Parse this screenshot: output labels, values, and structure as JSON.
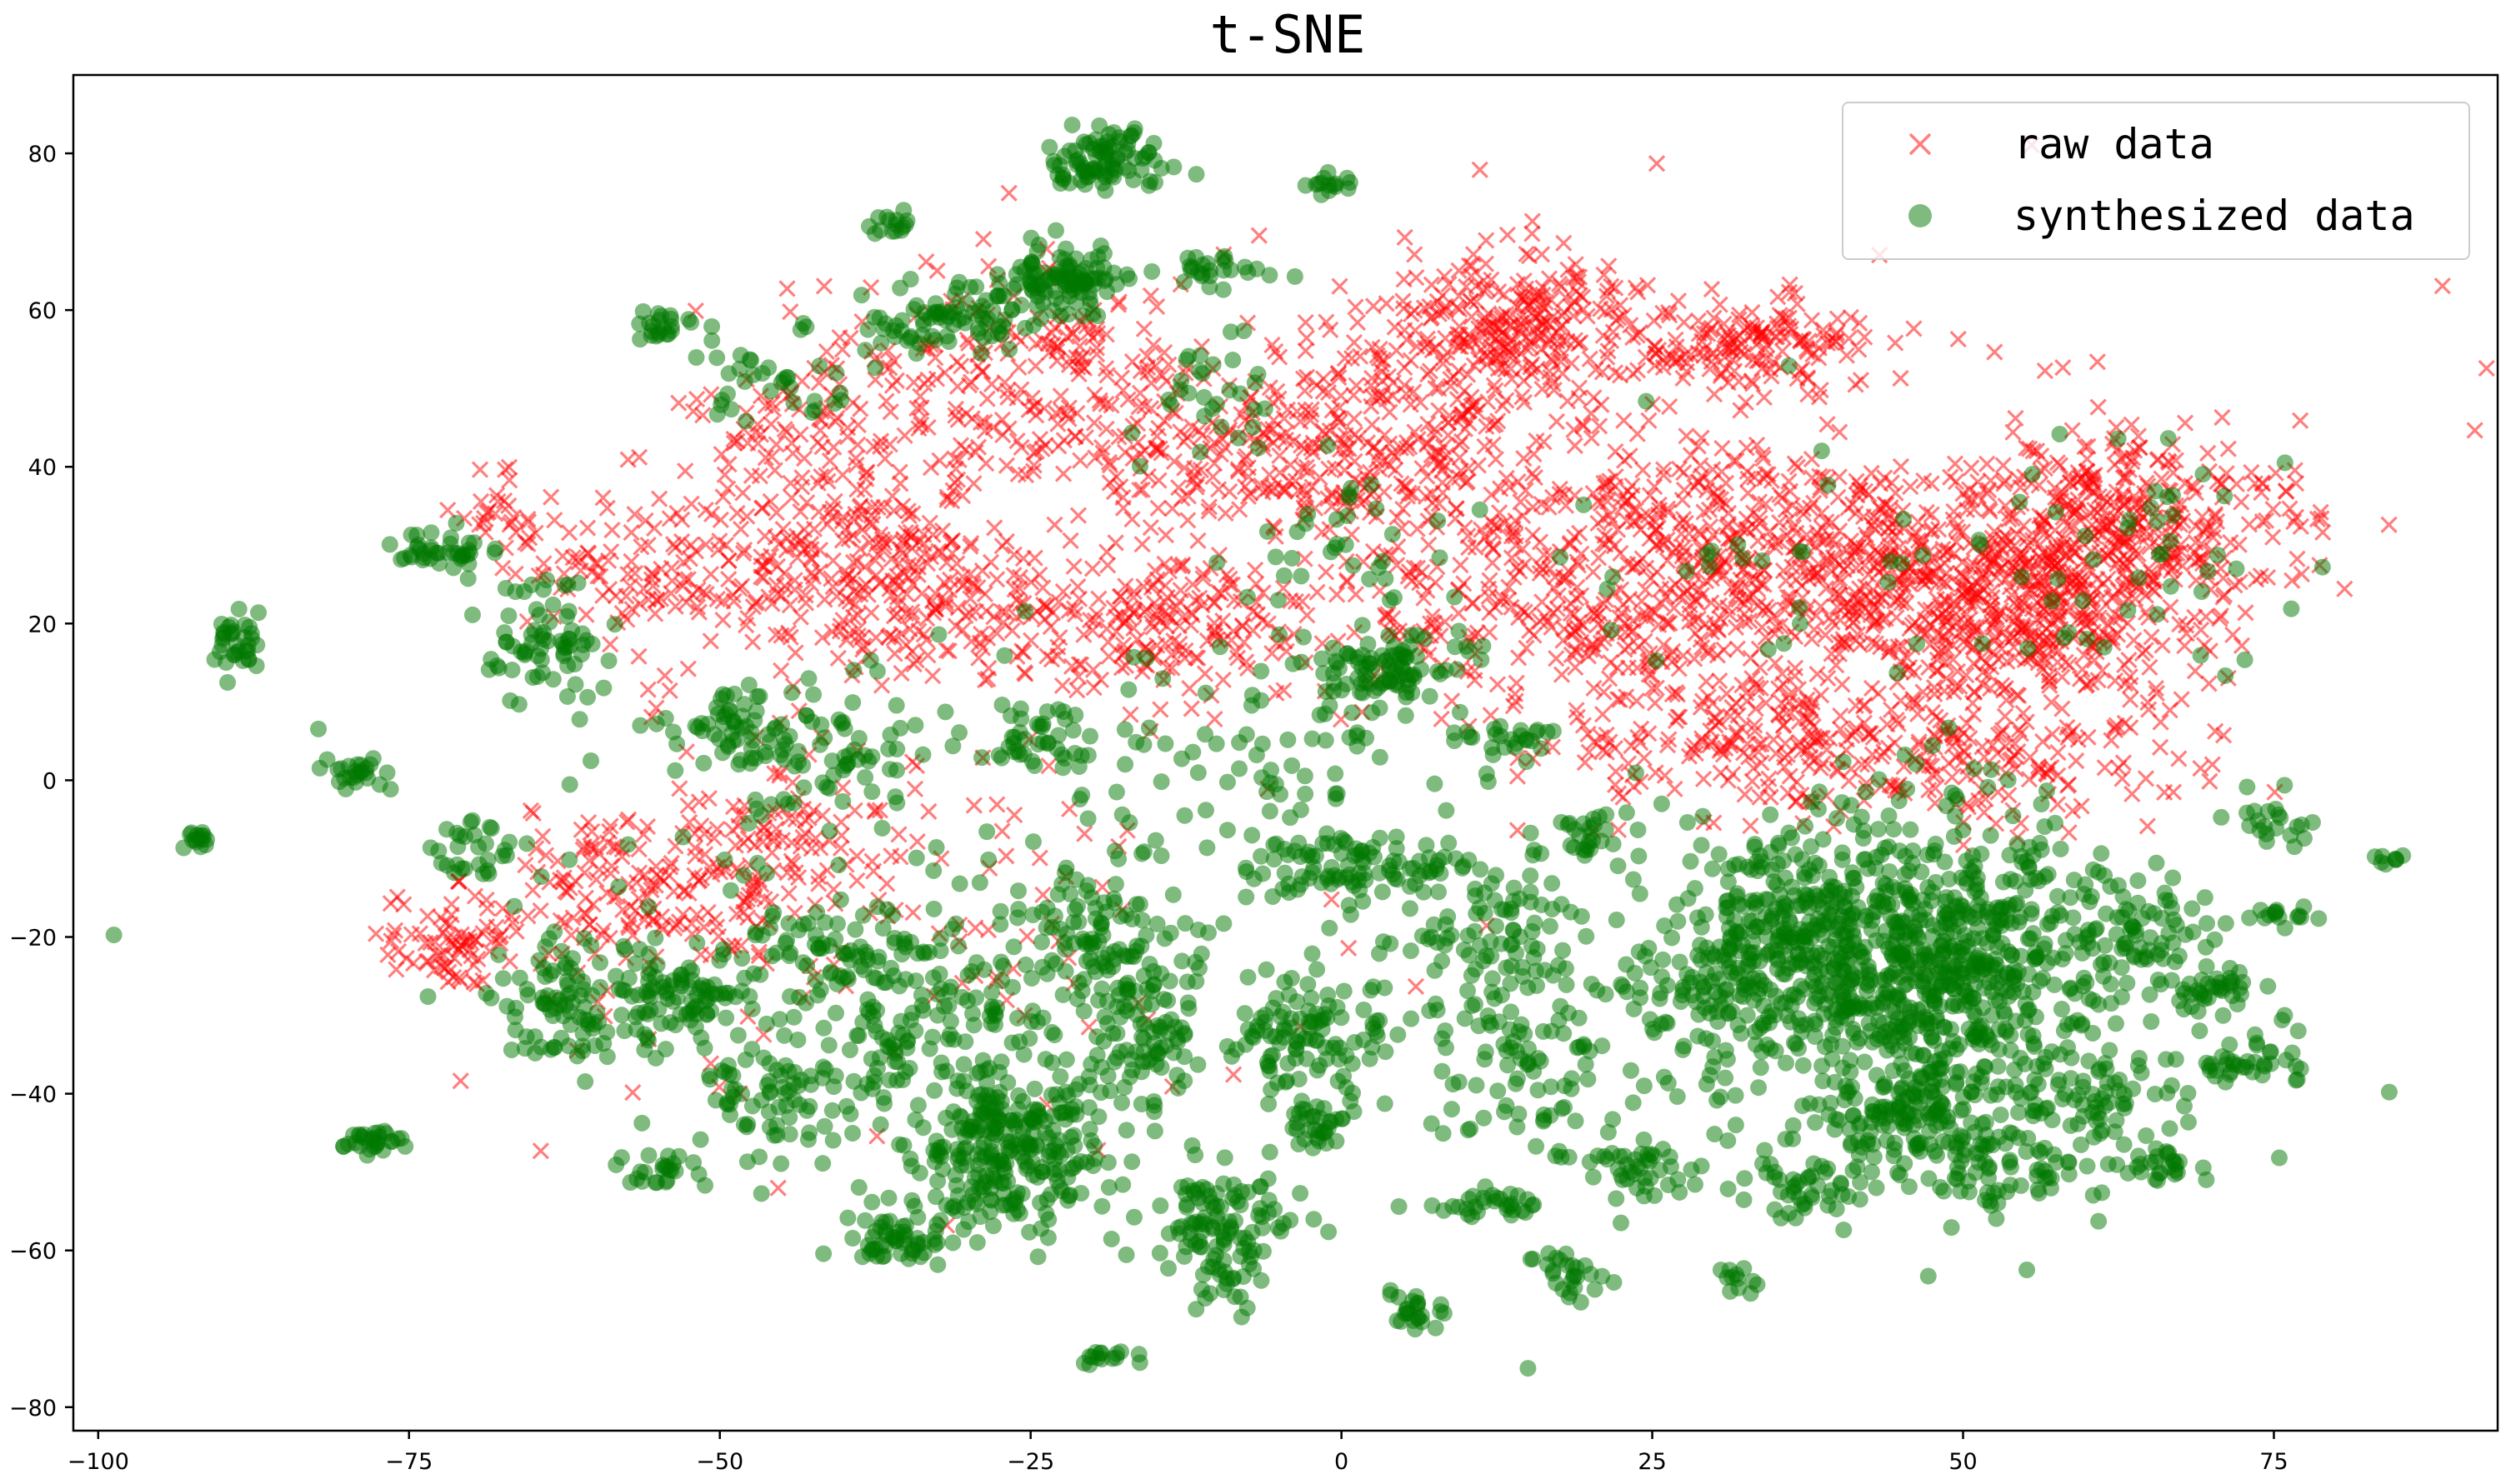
{
  "chart_data": {
    "type": "scatter",
    "title": "t-SNE",
    "xlabel": "",
    "ylabel": "",
    "xlim": [
      -102,
      93
    ],
    "ylim": [
      -83,
      90
    ],
    "xticks": [
      -100,
      -75,
      -50,
      -25,
      0,
      25,
      50,
      75
    ],
    "yticks": [
      -80,
      -60,
      -40,
      -20,
      0,
      20,
      40,
      60,
      80
    ],
    "grid": false,
    "legend_position": "top-right",
    "series": [
      {
        "name": "raw data",
        "marker": "x",
        "color": "#ff0000",
        "alpha": 0.5,
        "clusters": [
          {
            "cx": -71,
            "cy": -21,
            "sx": 3,
            "sy": 3,
            "n": 80
          },
          {
            "cx": -55,
            "cy": -14,
            "sx": 6,
            "sy": 5,
            "n": 150
          },
          {
            "cx": -45,
            "cy": -8,
            "sx": 5,
            "sy": 5,
            "n": 90
          },
          {
            "cx": -55,
            "cy": 27,
            "sx": 5,
            "sy": 5,
            "n": 110
          },
          {
            "cx": -68,
            "cy": 34,
            "sx": 2,
            "sy": 3,
            "n": 30
          },
          {
            "cx": -40,
            "cy": 28,
            "sx": 6,
            "sy": 7,
            "n": 230
          },
          {
            "cx": -42,
            "cy": 46,
            "sx": 6,
            "sy": 4,
            "n": 80
          },
          {
            "cx": -25,
            "cy": 52,
            "sx": 7,
            "sy": 7,
            "n": 200
          },
          {
            "cx": -30,
            "cy": 23,
            "sx": 6,
            "sy": 5,
            "n": 110
          },
          {
            "cx": -14,
            "cy": 20,
            "sx": 5,
            "sy": 5,
            "n": 160
          },
          {
            "cx": -8,
            "cy": 42,
            "sx": 7,
            "sy": 6,
            "n": 180
          },
          {
            "cx": 4,
            "cy": 45,
            "sx": 6,
            "sy": 7,
            "n": 140
          },
          {
            "cx": 5,
            "cy": 22,
            "sx": 6,
            "sy": 6,
            "n": 70
          },
          {
            "cx": 14,
            "cy": 58,
            "sx": 5,
            "sy": 5,
            "n": 260
          },
          {
            "cx": 33,
            "cy": 56,
            "sx": 4,
            "sy": 3,
            "n": 150
          },
          {
            "cx": 22,
            "cy": 20,
            "sx": 6,
            "sy": 7,
            "n": 200
          },
          {
            "cx": 28,
            "cy": 34,
            "sx": 7,
            "sy": 6,
            "n": 200
          },
          {
            "cx": 35,
            "cy": 5,
            "sx": 8,
            "sy": 5,
            "n": 170
          },
          {
            "cx": 42,
            "cy": 25,
            "sx": 8,
            "sy": 7,
            "n": 330
          },
          {
            "cx": 55,
            "cy": 22,
            "sx": 7,
            "sy": 8,
            "n": 450
          },
          {
            "cx": 64,
            "cy": 32,
            "sx": 6,
            "sy": 6,
            "n": 280
          },
          {
            "cx": 50,
            "cy": 2,
            "sx": 10,
            "sy": 4,
            "n": 120
          },
          {
            "cx": 8,
            "cy": 38,
            "sx": 5,
            "sy": 6,
            "n": 80
          },
          {
            "cx": -35,
            "cy": -20,
            "sx": 18,
            "sy": 16,
            "n": 100
          },
          {
            "cx": 30,
            "cy": 30,
            "sx": 30,
            "sy": 18,
            "n": 160
          }
        ]
      },
      {
        "name": "synthesized data",
        "marker": "o",
        "color": "#007700",
        "alpha": 0.5,
        "clusters": [
          {
            "cx": -92,
            "cy": -7.5,
            "sx": 0.6,
            "sy": 0.6,
            "n": 15
          },
          {
            "cx": -79,
            "cy": 1,
            "sx": 1.2,
            "sy": 1,
            "n": 25
          },
          {
            "cx": -89,
            "cy": 17,
            "sx": 1.2,
            "sy": 2,
            "n": 35
          },
          {
            "cx": -72,
            "cy": 29,
            "sx": 2,
            "sy": 1.2,
            "n": 40
          },
          {
            "cx": -64,
            "cy": 17,
            "sx": 2.5,
            "sy": 4,
            "n": 70
          },
          {
            "cx": -78,
            "cy": -46,
            "sx": 1.3,
            "sy": 1,
            "n": 30
          },
          {
            "cx": -70,
            "cy": -8,
            "sx": 2,
            "sy": 2,
            "n": 30
          },
          {
            "cx": -63,
            "cy": -28,
            "sx": 3,
            "sy": 4,
            "n": 90
          },
          {
            "cx": -53,
            "cy": -28,
            "sx": 3,
            "sy": 3,
            "n": 90
          },
          {
            "cx": -55,
            "cy": -50,
            "sx": 1.5,
            "sy": 1.2,
            "n": 25
          },
          {
            "cx": -48,
            "cy": 7,
            "sx": 3,
            "sy": 3,
            "n": 60
          },
          {
            "cx": -55,
            "cy": 58,
            "sx": 1,
            "sy": 0.8,
            "n": 20
          },
          {
            "cx": -36,
            "cy": 71,
            "sx": 1,
            "sy": 0.8,
            "n": 15
          },
          {
            "cx": -46,
            "cy": -40,
            "sx": 3,
            "sy": 3,
            "n": 60
          },
          {
            "cx": -40,
            "cy": -22,
            "sx": 5,
            "sy": 4,
            "n": 80
          },
          {
            "cx": -33,
            "cy": -33,
            "sx": 5,
            "sy": 6,
            "n": 120
          },
          {
            "cx": -27,
            "cy": -48,
            "sx": 4,
            "sy": 5,
            "n": 260
          },
          {
            "cx": -36,
            "cy": -59,
            "sx": 2,
            "sy": 1.5,
            "n": 50
          },
          {
            "cx": -19,
            "cy": 79,
            "sx": 2.5,
            "sy": 2,
            "n": 90
          },
          {
            "cx": -22,
            "cy": 64,
            "sx": 3,
            "sy": 2,
            "n": 100
          },
          {
            "cx": -30,
            "cy": 59,
            "sx": 3,
            "sy": 2,
            "n": 60
          },
          {
            "cx": -10,
            "cy": -55,
            "sx": 3,
            "sy": 3,
            "n": 90
          },
          {
            "cx": -9,
            "cy": -63,
            "sx": 1.5,
            "sy": 2,
            "n": 30
          },
          {
            "cx": -16,
            "cy": -34,
            "sx": 3,
            "sy": 4,
            "n": 80
          },
          {
            "cx": -19,
            "cy": -74,
            "sx": 1,
            "sy": 0.6,
            "n": 15
          },
          {
            "cx": -20,
            "cy": -20,
            "sx": 4,
            "sy": 5,
            "n": 110
          },
          {
            "cx": -24,
            "cy": 5,
            "sx": 2,
            "sy": 2,
            "n": 40
          },
          {
            "cx": -10,
            "cy": 65,
            "sx": 2,
            "sy": 1,
            "n": 25
          },
          {
            "cx": -1,
            "cy": 76,
            "sx": 1,
            "sy": 0.6,
            "n": 15
          },
          {
            "cx": 4,
            "cy": 14,
            "sx": 2.5,
            "sy": 2.5,
            "n": 90
          },
          {
            "cx": 1,
            "cy": -11,
            "sx": 4,
            "sy": 2,
            "n": 90
          },
          {
            "cx": -3,
            "cy": -33,
            "sx": 3,
            "sy": 4,
            "n": 100
          },
          {
            "cx": -2,
            "cy": -44,
            "sx": 1.5,
            "sy": 1.5,
            "n": 30
          },
          {
            "cx": 6,
            "cy": -68,
            "sx": 1.2,
            "sy": 1.2,
            "n": 25
          },
          {
            "cx": 13,
            "cy": 5,
            "sx": 2,
            "sy": 1,
            "n": 25
          },
          {
            "cx": 12,
            "cy": -20,
            "sx": 4,
            "sy": 5,
            "n": 90
          },
          {
            "cx": 15,
            "cy": -38,
            "sx": 4,
            "sy": 5,
            "n": 70
          },
          {
            "cx": 12,
            "cy": -54,
            "sx": 2,
            "sy": 1,
            "n": 30
          },
          {
            "cx": 18,
            "cy": -63,
            "sx": 1.5,
            "sy": 2,
            "n": 25
          },
          {
            "cx": 24,
            "cy": -50,
            "sx": 2,
            "sy": 2,
            "n": 40
          },
          {
            "cx": 20,
            "cy": -7,
            "sx": 2,
            "sy": 1.5,
            "n": 30
          },
          {
            "cx": 30,
            "cy": -25,
            "sx": 4,
            "sy": 6,
            "n": 110
          },
          {
            "cx": 38,
            "cy": -18,
            "sx": 5,
            "sy": 7,
            "n": 280
          },
          {
            "cx": 46,
            "cy": -28,
            "sx": 6,
            "sy": 8,
            "n": 320
          },
          {
            "cx": 52,
            "cy": -20,
            "sx": 5,
            "sy": 8,
            "n": 260
          },
          {
            "cx": 44,
            "cy": -42,
            "sx": 4,
            "sy": 3,
            "n": 130
          },
          {
            "cx": 53,
            "cy": -50,
            "sx": 4,
            "sy": 3,
            "n": 80
          },
          {
            "cx": 60,
            "cy": -40,
            "sx": 4,
            "sy": 3,
            "n": 70
          },
          {
            "cx": 38,
            "cy": -52,
            "sx": 2,
            "sy": 2,
            "n": 40
          },
          {
            "cx": 65,
            "cy": -18,
            "sx": 3,
            "sy": 4,
            "n": 60
          },
          {
            "cx": 70,
            "cy": -27,
            "sx": 2,
            "sy": 1.5,
            "n": 35
          },
          {
            "cx": 73,
            "cy": -36,
            "sx": 2,
            "sy": 1.2,
            "n": 35
          },
          {
            "cx": 66,
            "cy": -49,
            "sx": 1.5,
            "sy": 1.5,
            "n": 25
          },
          {
            "cx": 75,
            "cy": -5,
            "sx": 1.5,
            "sy": 1.5,
            "n": 20
          },
          {
            "cx": 76,
            "cy": -17,
            "sx": 1.5,
            "sy": 0.7,
            "n": 15
          },
          {
            "cx": 84,
            "cy": -10,
            "sx": 0.6,
            "sy": 0.5,
            "n": 8
          },
          {
            "cx": 32,
            "cy": -64,
            "sx": 0.6,
            "sy": 1.5,
            "n": 12
          },
          {
            "cx": -40,
            "cy": 3,
            "sx": 4,
            "sy": 6,
            "n": 60
          },
          {
            "cx": -5,
            "cy": 0,
            "sx": 7,
            "sy": 8,
            "n": 60
          },
          {
            "cx": -45,
            "cy": 52,
            "sx": 4,
            "sy": 3,
            "n": 40
          },
          {
            "cx": -35,
            "cy": 58,
            "sx": 2,
            "sy": 2,
            "n": 25
          },
          {
            "cx": -10,
            "cy": 50,
            "sx": 3,
            "sy": 4,
            "n": 30
          },
          {
            "cx": 0,
            "cy": 30,
            "sx": 5,
            "sy": 4,
            "n": 30
          },
          {
            "cx": 40,
            "cy": 25,
            "sx": 20,
            "sy": 12,
            "n": 60
          },
          {
            "cx": 65,
            "cy": 30,
            "sx": 6,
            "sy": 8,
            "n": 30
          },
          {
            "cx": -25,
            "cy": -20,
            "sx": 25,
            "sy": 18,
            "n": 160
          },
          {
            "cx": 40,
            "cy": -30,
            "sx": 22,
            "sy": 14,
            "n": 140
          }
        ]
      }
    ]
  }
}
